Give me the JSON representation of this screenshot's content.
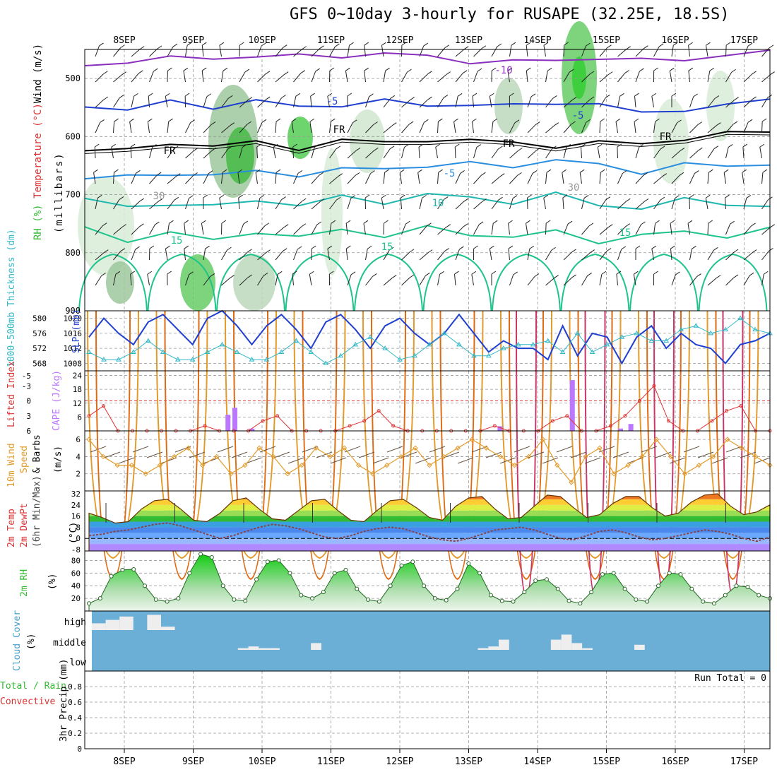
{
  "title": "GFS 0~10day 3-hourly for RUSAPE (32.25E, 18.5S)",
  "dates": [
    "8SEP",
    "9SEP",
    "10SEP",
    "11SEP",
    "12SEP",
    "13SEP",
    "14SEP",
    "15SEP",
    "16SEP",
    "17SEP"
  ],
  "colors": {
    "grid": "#999999",
    "axis": "#000000",
    "barb": "#333333",
    "sky": "#6baed6",
    "rh_green": "#33bb33",
    "cape": "#bb77ff",
    "li": "#dd3333",
    "wind": "#e39a2a",
    "slp": "#1f3fd0",
    "thick": "#33b8c8"
  },
  "chart_data": [
    {
      "type": "contour",
      "panel": "upper-air",
      "ylabel_parts": [
        "RH (%)",
        "Temperature (°C)",
        "Wind (m/s)"
      ],
      "ylabel_units": "(millibars)",
      "yticks": [
        500,
        600,
        700,
        800,
        900
      ],
      "ylim": [
        450,
        900
      ],
      "contours": [
        {
          "label": "-10",
          "color": "#8a2fbe",
          "levels": [
            478,
            470,
            466,
            464,
            462,
            462,
            460,
            458,
            462,
            470,
            472,
            468,
            464,
            470,
            466,
            460,
            455
          ]
        },
        {
          "label": "-5",
          "color": "#1f3fd0",
          "levels": [
            545,
            555,
            540,
            548,
            540,
            548,
            545,
            540,
            545,
            545,
            548,
            540,
            545,
            560,
            552,
            548,
            535
          ]
        },
        {
          "label": "FR",
          "color": "#000000",
          "levels": [
            620,
            625,
            612,
            614,
            612,
            620,
            605,
            612,
            604,
            608,
            610,
            616,
            612,
            610,
            605,
            596,
            588
          ]
        },
        {
          "label": "-5",
          "color": "#2a8ee0",
          "levels": [
            672,
            670,
            662,
            668,
            660,
            665,
            658,
            654,
            650,
            648,
            650,
            640,
            650,
            660,
            648,
            652,
            645
          ]
        },
        {
          "label": "10",
          "color": "#1fb8b0",
          "levels": [
            710,
            720,
            715,
            722,
            708,
            718,
            705,
            712,
            700,
            706,
            712,
            700,
            718,
            722,
            710,
            715,
            720
          ]
        },
        {
          "label": "15",
          "color": "#1fc48a",
          "levels": [
            760,
            778,
            765,
            780,
            762,
            775,
            760,
            770,
            758,
            768,
            772,
            765,
            780,
            770,
            765,
            770,
            760
          ]
        }
      ],
      "contour_labels": [
        "-10",
        "-5",
        "-5",
        "FR",
        "FR",
        "FR",
        "FR",
        "-5",
        "10",
        "15",
        "15",
        "15",
        "30",
        "30"
      ]
    },
    {
      "type": "line",
      "panel": "slp-thickness",
      "ylabel_left": "1000-500mb Thickness (dm)",
      "ylabel_right": "SLP (mb)",
      "yticks_thickness": [
        568,
        572,
        576,
        580
      ],
      "yticks_slp": [
        1008,
        1012,
        1016,
        1020
      ],
      "series": [
        {
          "name": "SLP",
          "values": [
            1015,
            1020,
            1016,
            1013,
            1019,
            1021,
            1017,
            1013,
            1020,
            1022,
            1018,
            1013,
            1018,
            1021,
            1017,
            1012,
            1019,
            1021,
            1017,
            1012,
            1018,
            1020,
            1016,
            1013,
            1016,
            1021,
            1016,
            1011,
            1014,
            1012,
            1012,
            1009,
            1018,
            1010,
            1016,
            1015,
            1008,
            1015,
            1018,
            1012,
            1016,
            1013,
            1012,
            1008,
            1013,
            1014,
            1016
          ]
        },
        {
          "name": "Thickness",
          "values": [
            571,
            569,
            569,
            571,
            574,
            571,
            569,
            569,
            571,
            573,
            571,
            569,
            569,
            571,
            574,
            571,
            568,
            570,
            573,
            575,
            572,
            569,
            570,
            573,
            576,
            573,
            570,
            570,
            572,
            573,
            573,
            574,
            571,
            576,
            571,
            573,
            575,
            576,
            574,
            574,
            577,
            578,
            576,
            577,
            580,
            577,
            576
          ]
        }
      ]
    },
    {
      "type": "bar+line",
      "panel": "cape-li",
      "ylabel_left": "Lifted Index",
      "ylabel_right": "CAPE (J/kg)",
      "yticks_li": [
        -5,
        -3,
        0,
        3,
        6
      ],
      "yticks_cape": [
        6,
        12,
        18,
        24
      ],
      "li_values": [
        3,
        1,
        6,
        7,
        9,
        7,
        6,
        7,
        5,
        8,
        6,
        7,
        4,
        3,
        6,
        9,
        6,
        7,
        5,
        4,
        2,
        5,
        7,
        8,
        8,
        6,
        7,
        6,
        5,
        6,
        7,
        8,
        4,
        3,
        9,
        7,
        5,
        3,
        0,
        -3,
        4,
        8,
        6,
        4,
        2,
        1,
        6,
        7
      ],
      "cape_bars": [
        {
          "date_index": 1.5,
          "value": 7
        },
        {
          "date_index": 1.6,
          "value": 10
        },
        {
          "date_index": 1.85,
          "value": 1
        },
        {
          "date_index": 5.45,
          "value": 2
        },
        {
          "date_index": 6.5,
          "value": 22
        },
        {
          "date_index": 7.2,
          "value": 1
        },
        {
          "date_index": 7.35,
          "value": 3
        }
      ]
    },
    {
      "type": "line",
      "panel": "wind",
      "ylabel_parts": [
        "10m Wind",
        "Speed",
        "& Barbs"
      ],
      "ylabel_units": "(m/s)",
      "yticks": [
        2,
        4,
        6
      ],
      "values": [
        6,
        4,
        3,
        3,
        2,
        3,
        4,
        5,
        3,
        4,
        2,
        3,
        5,
        4,
        2,
        3,
        5,
        4,
        5,
        3,
        2,
        3,
        4,
        5,
        3,
        4,
        5,
        6,
        5,
        4,
        3,
        4,
        6,
        3,
        1,
        4,
        5,
        2,
        3,
        4,
        6,
        4,
        2,
        3,
        4,
        6,
        5,
        4,
        3
      ]
    },
    {
      "type": "area",
      "panel": "temp",
      "ylabel_parts": [
        "2m Temp",
        "2m DewPt",
        "(6hr Min/Max)"
      ],
      "ylabel_units": "(°C)",
      "yticks": [
        -8,
        0,
        8,
        16,
        24,
        32
      ],
      "temp_values": [
        18,
        15,
        11,
        12,
        21,
        27,
        28,
        21,
        13,
        12,
        18,
        27,
        29,
        21,
        14,
        13,
        20,
        27,
        28,
        20,
        13,
        12,
        20,
        27,
        28,
        22,
        15,
        13,
        23,
        29,
        30,
        21,
        14,
        15,
        23,
        31,
        30,
        22,
        15,
        17,
        25,
        30,
        30,
        22,
        16,
        18,
        26,
        31,
        32,
        23,
        17,
        19,
        24
      ],
      "dewpt_values": [
        2,
        3,
        5,
        6,
        8,
        10,
        11,
        9,
        6,
        3,
        0,
        2,
        5,
        8,
        10,
        9,
        7,
        4,
        1,
        0,
        2,
        5,
        7,
        8,
        7,
        4,
        1,
        -1,
        -2,
        0,
        3,
        6,
        7,
        8,
        6,
        3,
        0,
        -1,
        2,
        5,
        6,
        4,
        1,
        -1,
        0,
        2,
        4,
        6,
        5,
        3,
        0,
        -2,
        1
      ]
    },
    {
      "type": "area",
      "panel": "rh",
      "ylabel": "2m RH",
      "ylabel_units": "(%)",
      "yticks": [
        20,
        40,
        60,
        80
      ],
      "values": [
        12,
        20,
        55,
        65,
        66,
        40,
        18,
        15,
        20,
        60,
        90,
        85,
        40,
        18,
        16,
        50,
        78,
        80,
        60,
        25,
        20,
        30,
        60,
        65,
        35,
        18,
        15,
        40,
        72,
        78,
        40,
        20,
        17,
        35,
        75,
        60,
        25,
        16,
        15,
        30,
        48,
        50,
        35,
        16,
        12,
        30,
        58,
        60,
        35,
        18,
        15,
        40,
        60,
        58,
        35,
        15,
        12,
        25,
        40,
        38,
        25,
        20
      ]
    },
    {
      "type": "bar",
      "panel": "cloud",
      "ylabel": "Cloud Cover",
      "ylabel_units": "(%)",
      "ytick_labels": [
        "high",
        "middle",
        "low"
      ],
      "high_values": [
        40,
        60,
        80,
        0,
        90,
        20,
        0,
        0,
        0,
        0,
        0,
        0,
        0,
        0,
        0,
        0,
        0,
        0,
        0,
        0,
        0,
        0,
        0,
        0,
        0,
        0,
        0,
        0,
        0,
        0,
        0,
        0,
        0,
        0,
        0,
        0,
        0,
        0,
        0,
        0,
        0,
        0,
        0,
        0,
        0,
        0,
        0,
        0,
        0
      ],
      "middle_values": [
        0,
        0,
        0,
        0,
        0,
        0,
        0,
        0,
        0,
        0,
        0,
        0,
        0,
        0,
        10,
        20,
        10,
        10,
        0,
        0,
        0,
        40,
        0,
        0,
        0,
        0,
        0,
        0,
        0,
        0,
        0,
        0,
        0,
        0,
        0,
        0,
        0,
        10,
        20,
        60,
        0,
        0,
        0,
        0,
        60,
        90,
        40,
        10,
        0,
        0,
        0,
        0,
        30,
        0,
        0,
        0,
        0,
        0,
        0,
        0,
        0,
        0,
        0,
        0,
        0
      ]
    },
    {
      "type": "bar",
      "panel": "precip",
      "ylabel_parts": [
        "Total / Rain",
        "Convective"
      ],
      "ylabel_right": "3hr Precip (mm)",
      "yticks": [
        0,
        0.2,
        0.4,
        0.6,
        0.8
      ],
      "ylim": [
        0,
        1
      ],
      "run_total": "Run Total = 0",
      "values": []
    }
  ]
}
